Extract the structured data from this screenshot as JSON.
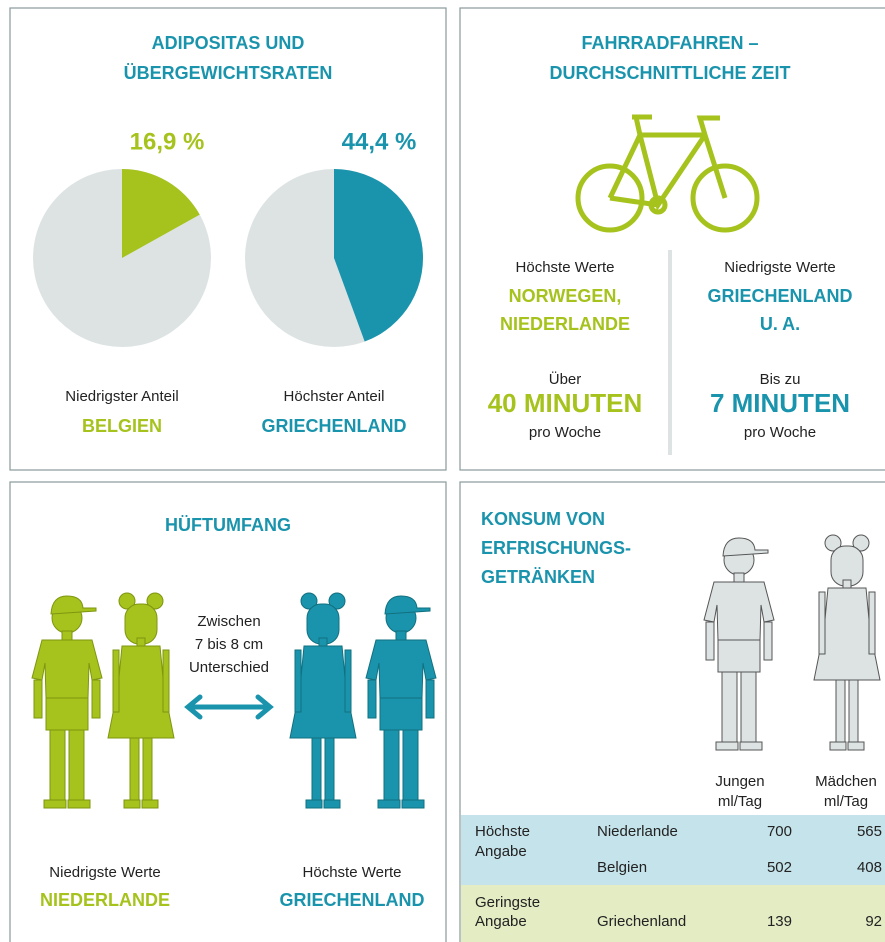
{
  "obesity": {
    "title_lines": [
      "ADIPOSITAS UND",
      "ÜBERGEWICHTSRATEN"
    ],
    "rest_color": "#dde3e3",
    "pies": [
      {
        "value": 16.9,
        "value_label": "16,9 %",
        "caption": "Niedrigster Anteil",
        "country": "BELGIEN",
        "color": "#a5c21d"
      },
      {
        "value": 44.4,
        "value_label": "44,4 %",
        "caption": "Höchster Anteil",
        "country": "GRIECHENLAND",
        "color": "#1a94ad"
      }
    ]
  },
  "cycling": {
    "title_lines": [
      "FAHRRADFAHREN –",
      "DURCHSCHNITTLICHE ZEIT"
    ],
    "highest": {
      "caption": "Höchste Werte",
      "countries": [
        "NORWEGEN,",
        "NIEDERLANDE"
      ],
      "prefix": "Über",
      "amount": "40 MINUTEN",
      "suffix": "pro Woche"
    },
    "lowest": {
      "caption": "Niedrigste Werte",
      "countries": [
        "GRIECHENLAND",
        "U. A."
      ],
      "prefix": "Bis zu",
      "amount": "7 MINUTEN",
      "suffix": "pro Woche"
    }
  },
  "hip": {
    "title": "HÜFTUMFANG",
    "note_lines": [
      "Zwischen",
      "7 bis 8 cm",
      "Unterschied"
    ],
    "left": {
      "caption": "Niedrigste Werte",
      "country": "NIEDERLANDE"
    },
    "right": {
      "caption": "Höchste Werte",
      "country": "GRIECHENLAND"
    }
  },
  "drinks": {
    "title_lines": [
      "KONSUM VON",
      "ERFRISCHUNGS-",
      "GETRÄNKEN"
    ],
    "columns": [
      [
        "Jungen",
        "ml/Tag"
      ],
      [
        "Mädchen",
        "ml/Tag"
      ]
    ],
    "rows": [
      {
        "group": [
          "Höchste",
          "Angabe"
        ],
        "country": "Niederlande",
        "boys": "700",
        "girls": "565"
      },
      {
        "country": "Belgien",
        "boys": "502",
        "girls": "408"
      },
      {
        "group": [
          "Geringste",
          "Angabe"
        ],
        "country": "Griechenland",
        "boys": "139",
        "girls": "92"
      }
    ]
  }
}
